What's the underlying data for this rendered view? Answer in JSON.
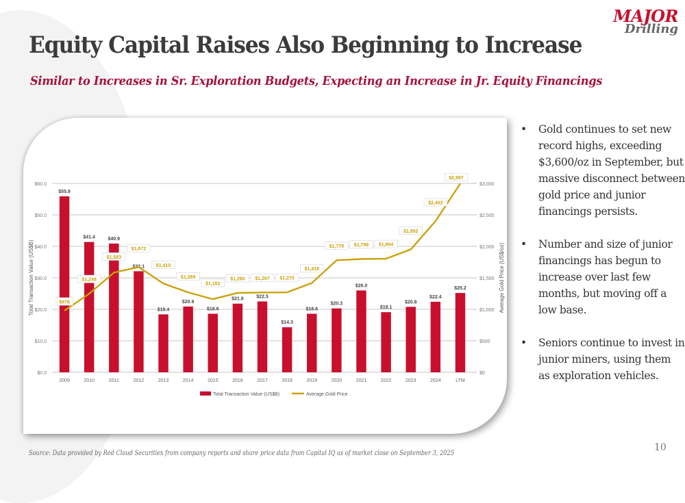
{
  "logo": {
    "line1": "MAJOR",
    "line2": "Drilling"
  },
  "header": {
    "title": "Equity Capital Raises Also Beginning to Increase",
    "subtitle": "Similar to Increases in Sr. Exploration Budgets, Expecting an Increase in Jr. Equity Financings"
  },
  "bullets": [
    {
      "icon": "bullet-dot",
      "text": "Gold continues to set new record highs, exceeding $3,600/oz in September, but massive disconnect between gold price and junior financings persists."
    },
    {
      "icon": "bullet-dot",
      "text": "Number and size of junior financings has begun to increase over last few months, but moving off a low base."
    },
    {
      "icon": "bullet-dot",
      "text": "Seniors continue to invest in junior miners, using them as exploration vehicles."
    }
  ],
  "bullet_char": "•",
  "footer": {
    "source": "Source: Data provided by Red Cloud Securities from company reports and share price data from Capital IQ as of market close on September 3, 2025",
    "page_number": "10"
  },
  "colors": {
    "bar": "#c8102e",
    "line": "#c9a20a",
    "accent": "#a6123a"
  },
  "chart_data": {
    "type": "bar",
    "title": "",
    "categories": [
      "2009",
      "2010",
      "2011",
      "2012",
      "2013",
      "2014",
      "2015",
      "2016",
      "2017",
      "2018",
      "2019",
      "2020",
      "2021",
      "2022",
      "2023",
      "2024",
      "LTM"
    ],
    "series": [
      {
        "name": "Total Transaction Value (US$B)",
        "type": "bar",
        "axis": "left",
        "values": [
          55.9,
          41.4,
          40.9,
          32.1,
          18.4,
          20.9,
          18.6,
          21.8,
          22.5,
          14.3,
          18.6,
          20.3,
          26.0,
          19.1,
          20.8,
          22.4,
          25.2
        ],
        "labels": [
          "$55.9",
          "$41.4",
          "$40.9",
          "$32.1",
          "$18.4",
          "$20.9",
          "$18.6",
          "$21.8",
          "$22.5",
          "$14.3",
          "$18.6",
          "$20.3",
          "$26.0",
          "$19.1",
          "$20.8",
          "$22.4",
          "$25.2"
        ]
      },
      {
        "name": "Average Gold Price",
        "type": "line",
        "axis": "right",
        "values": [
          978,
          1248,
          1583,
          1672,
          1410,
          1269,
          1162,
          1260,
          1267,
          1270,
          1419,
          1779,
          1799,
          1804,
          1952,
          2402,
          2997
        ],
        "labels": [
          "$978",
          "$1,248",
          "$1,583",
          "$1,672",
          "$1,410",
          "$1,269",
          "$1,162",
          "$1,260",
          "$1,267",
          "$1,270",
          "$1,419",
          "$1,779",
          "$1,799",
          "$1,804",
          "$1,952",
          "$2,402",
          "$2,997"
        ]
      }
    ],
    "ylabel": "Total Transaction Value (US$B)",
    "ylim": [
      0,
      60
    ],
    "yticks": [
      "$0.0",
      "$10.0",
      "$20.0",
      "$30.0",
      "$40.0",
      "$50.0",
      "$60.0"
    ],
    "y2label": "Average Gold Price (US$/oz)",
    "y2lim": [
      0,
      3000
    ],
    "y2ticks": [
      "$0",
      "$500",
      "$1,000",
      "$1,500",
      "$2,000",
      "$2,500",
      "$3,000"
    ],
    "grid": true,
    "legend": "bottom-center",
    "legend_entries": [
      "Total Transaction Value (US$B)",
      "Average Gold Price"
    ]
  }
}
